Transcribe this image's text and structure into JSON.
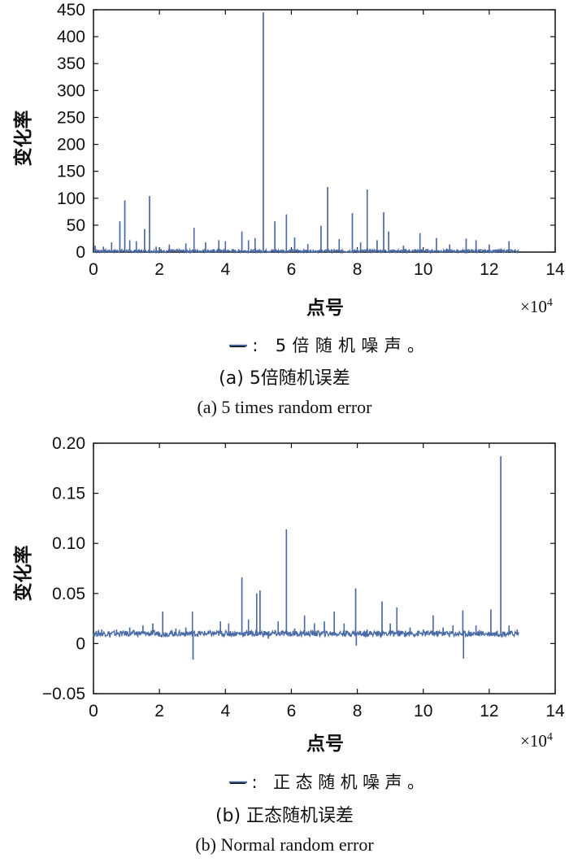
{
  "chart_data": [
    {
      "type": "line",
      "ylabel": "变化率",
      "xlabel": "点号",
      "x_multiplier": "×10",
      "x_multiplier_exp": "4",
      "xlim": [
        0,
        14
      ],
      "ylim": [
        0,
        450
      ],
      "xticks": [
        "0",
        "2",
        "4",
        "6",
        "8",
        "10",
        "12",
        "14"
      ],
      "yticks": [
        "0",
        "50",
        "100",
        "150",
        "200",
        "250",
        "300",
        "350",
        "400",
        "450"
      ],
      "legend": "—: 5倍随机噪声。",
      "caption_cn": "(a) 5倍随机误差",
      "caption_en": "(a) 5 times random error",
      "x_end": 12.9,
      "baseline": 2,
      "spikes": [
        {
          "x": 0.05,
          "y": 12
        },
        {
          "x": 0.3,
          "y": 10
        },
        {
          "x": 0.55,
          "y": 18
        },
        {
          "x": 0.8,
          "y": 57
        },
        {
          "x": 0.95,
          "y": 96
        },
        {
          "x": 1.1,
          "y": 22
        },
        {
          "x": 1.3,
          "y": 20
        },
        {
          "x": 1.55,
          "y": 43
        },
        {
          "x": 1.7,
          "y": 104
        },
        {
          "x": 1.9,
          "y": 10
        },
        {
          "x": 2.3,
          "y": 14
        },
        {
          "x": 2.8,
          "y": 16
        },
        {
          "x": 3.05,
          "y": 45
        },
        {
          "x": 3.4,
          "y": 18
        },
        {
          "x": 3.8,
          "y": 22
        },
        {
          "x": 4.0,
          "y": 20
        },
        {
          "x": 4.5,
          "y": 38
        },
        {
          "x": 4.7,
          "y": 22
        },
        {
          "x": 4.9,
          "y": 26
        },
        {
          "x": 5.15,
          "y": 445
        },
        {
          "x": 5.5,
          "y": 57
        },
        {
          "x": 5.85,
          "y": 70
        },
        {
          "x": 6.1,
          "y": 27
        },
        {
          "x": 6.5,
          "y": 15
        },
        {
          "x": 6.9,
          "y": 49
        },
        {
          "x": 7.1,
          "y": 121
        },
        {
          "x": 7.45,
          "y": 24
        },
        {
          "x": 7.85,
          "y": 72
        },
        {
          "x": 8.1,
          "y": 18
        },
        {
          "x": 8.3,
          "y": 116
        },
        {
          "x": 8.6,
          "y": 22
        },
        {
          "x": 8.8,
          "y": 74
        },
        {
          "x": 8.95,
          "y": 38
        },
        {
          "x": 9.4,
          "y": 12
        },
        {
          "x": 9.9,
          "y": 35
        },
        {
          "x": 10.4,
          "y": 26
        },
        {
          "x": 10.8,
          "y": 14
        },
        {
          "x": 11.3,
          "y": 25
        },
        {
          "x": 11.6,
          "y": 22
        },
        {
          "x": 12.0,
          "y": 14
        },
        {
          "x": 12.6,
          "y": 20
        }
      ]
    },
    {
      "type": "line",
      "ylabel": "变化率",
      "xlabel": "点号",
      "x_multiplier": "×10",
      "x_multiplier_exp": "4",
      "xlim": [
        0,
        14
      ],
      "ylim": [
        -0.05,
        0.2
      ],
      "xticks": [
        "0",
        "2",
        "4",
        "6",
        "8",
        "10",
        "12",
        "14"
      ],
      "yticks": [
        "−0.05",
        "0",
        "0.05",
        "0.10",
        "0.15",
        "0.20"
      ],
      "legend": "—: 正态随机噪声。",
      "caption_cn": "(b) 正态随机误差",
      "caption_en": "(b) Normal random error",
      "x_end": 12.9,
      "baseline": 0.01,
      "spikes": [
        {
          "x": 0.25,
          "y": 0.014
        },
        {
          "x": 0.5,
          "y": 0.006
        },
        {
          "x": 0.7,
          "y": 0.014
        },
        {
          "x": 1.1,
          "y": 0.016
        },
        {
          "x": 1.5,
          "y": 0.018
        },
        {
          "x": 1.8,
          "y": 0.02
        },
        {
          "x": 2.1,
          "y": 0.032
        },
        {
          "x": 2.5,
          "y": 0.015
        },
        {
          "x": 2.8,
          "y": 0.016
        },
        {
          "x": 3.0,
          "y": 0.032
        },
        {
          "x": 3.02,
          "y": -0.016
        },
        {
          "x": 3.5,
          "y": 0.012
        },
        {
          "x": 3.85,
          "y": 0.022
        },
        {
          "x": 4.1,
          "y": 0.02
        },
        {
          "x": 4.5,
          "y": 0.066
        },
        {
          "x": 4.7,
          "y": 0.024
        },
        {
          "x": 4.95,
          "y": 0.05
        },
        {
          "x": 5.05,
          "y": 0.053
        },
        {
          "x": 5.3,
          "y": 0.005
        },
        {
          "x": 5.6,
          "y": 0.022
        },
        {
          "x": 5.85,
          "y": 0.114
        },
        {
          "x": 6.1,
          "y": 0.015
        },
        {
          "x": 6.4,
          "y": 0.028
        },
        {
          "x": 6.7,
          "y": 0.02
        },
        {
          "x": 7.0,
          "y": 0.022
        },
        {
          "x": 7.3,
          "y": 0.032
        },
        {
          "x": 7.6,
          "y": 0.02
        },
        {
          "x": 7.95,
          "y": 0.055
        },
        {
          "x": 7.97,
          "y": -0.002
        },
        {
          "x": 8.3,
          "y": 0.014
        },
        {
          "x": 8.75,
          "y": 0.042
        },
        {
          "x": 9.0,
          "y": 0.02
        },
        {
          "x": 9.2,
          "y": 0.036
        },
        {
          "x": 9.6,
          "y": 0.016
        },
        {
          "x": 10.0,
          "y": 0.014
        },
        {
          "x": 10.3,
          "y": 0.028
        },
        {
          "x": 10.6,
          "y": 0.016
        },
        {
          "x": 10.9,
          "y": 0.018
        },
        {
          "x": 11.2,
          "y": 0.033
        },
        {
          "x": 11.22,
          "y": -0.015
        },
        {
          "x": 11.6,
          "y": 0.018
        },
        {
          "x": 12.05,
          "y": 0.034
        },
        {
          "x": 12.35,
          "y": 0.187
        },
        {
          "x": 12.6,
          "y": 0.018
        },
        {
          "x": 12.85,
          "y": 0.014
        }
      ]
    }
  ],
  "colors": {
    "series": "#4a6aa5",
    "axis": "#111111"
  }
}
